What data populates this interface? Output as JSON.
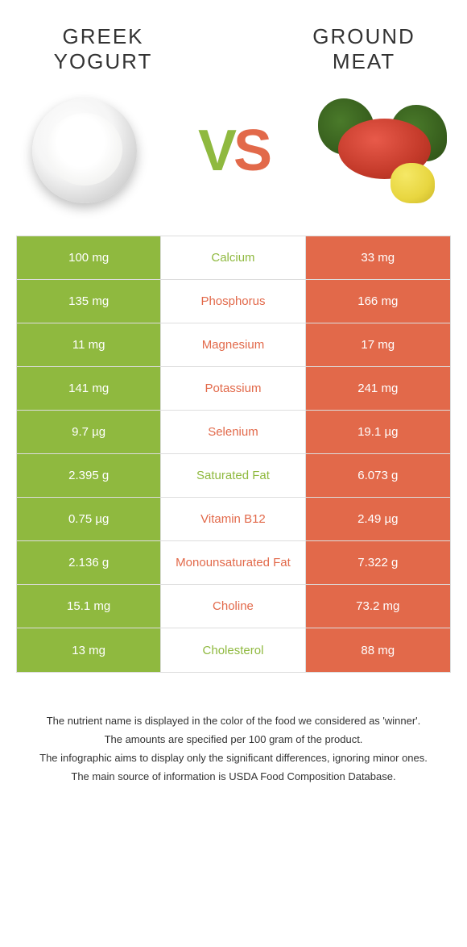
{
  "colors": {
    "green": "#8fb93f",
    "orange": "#e2694a"
  },
  "header": {
    "left_title_line1": "GREEK",
    "left_title_line2": "YOGURT",
    "right_title_line1": "GROUND",
    "right_title_line2": "MEAT",
    "vs_v": "V",
    "vs_s": "S"
  },
  "rows": [
    {
      "nutrient": "Calcium",
      "left": "100 mg",
      "right": "33 mg",
      "winner": "left"
    },
    {
      "nutrient": "Phosphorus",
      "left": "135 mg",
      "right": "166 mg",
      "winner": "right"
    },
    {
      "nutrient": "Magnesium",
      "left": "11 mg",
      "right": "17 mg",
      "winner": "right"
    },
    {
      "nutrient": "Potassium",
      "left": "141 mg",
      "right": "241 mg",
      "winner": "right"
    },
    {
      "nutrient": "Selenium",
      "left": "9.7 µg",
      "right": "19.1 µg",
      "winner": "right"
    },
    {
      "nutrient": "Saturated Fat",
      "left": "2.395 g",
      "right": "6.073 g",
      "winner": "left"
    },
    {
      "nutrient": "Vitamin B12",
      "left": "0.75 µg",
      "right": "2.49 µg",
      "winner": "right"
    },
    {
      "nutrient": "Monounsaturated Fat",
      "left": "2.136 g",
      "right": "7.322 g",
      "winner": "right"
    },
    {
      "nutrient": "Choline",
      "left": "15.1 mg",
      "right": "73.2 mg",
      "winner": "right"
    },
    {
      "nutrient": "Cholesterol",
      "left": "13 mg",
      "right": "88 mg",
      "winner": "left"
    }
  ],
  "footnotes": [
    "The nutrient name is displayed in the color of the food we considered as 'winner'.",
    "The amounts are specified per 100 gram of the product.",
    "The infographic aims to display only the significant differences, ignoring minor ones.",
    "The main source of information is USDA Food Composition Database."
  ]
}
